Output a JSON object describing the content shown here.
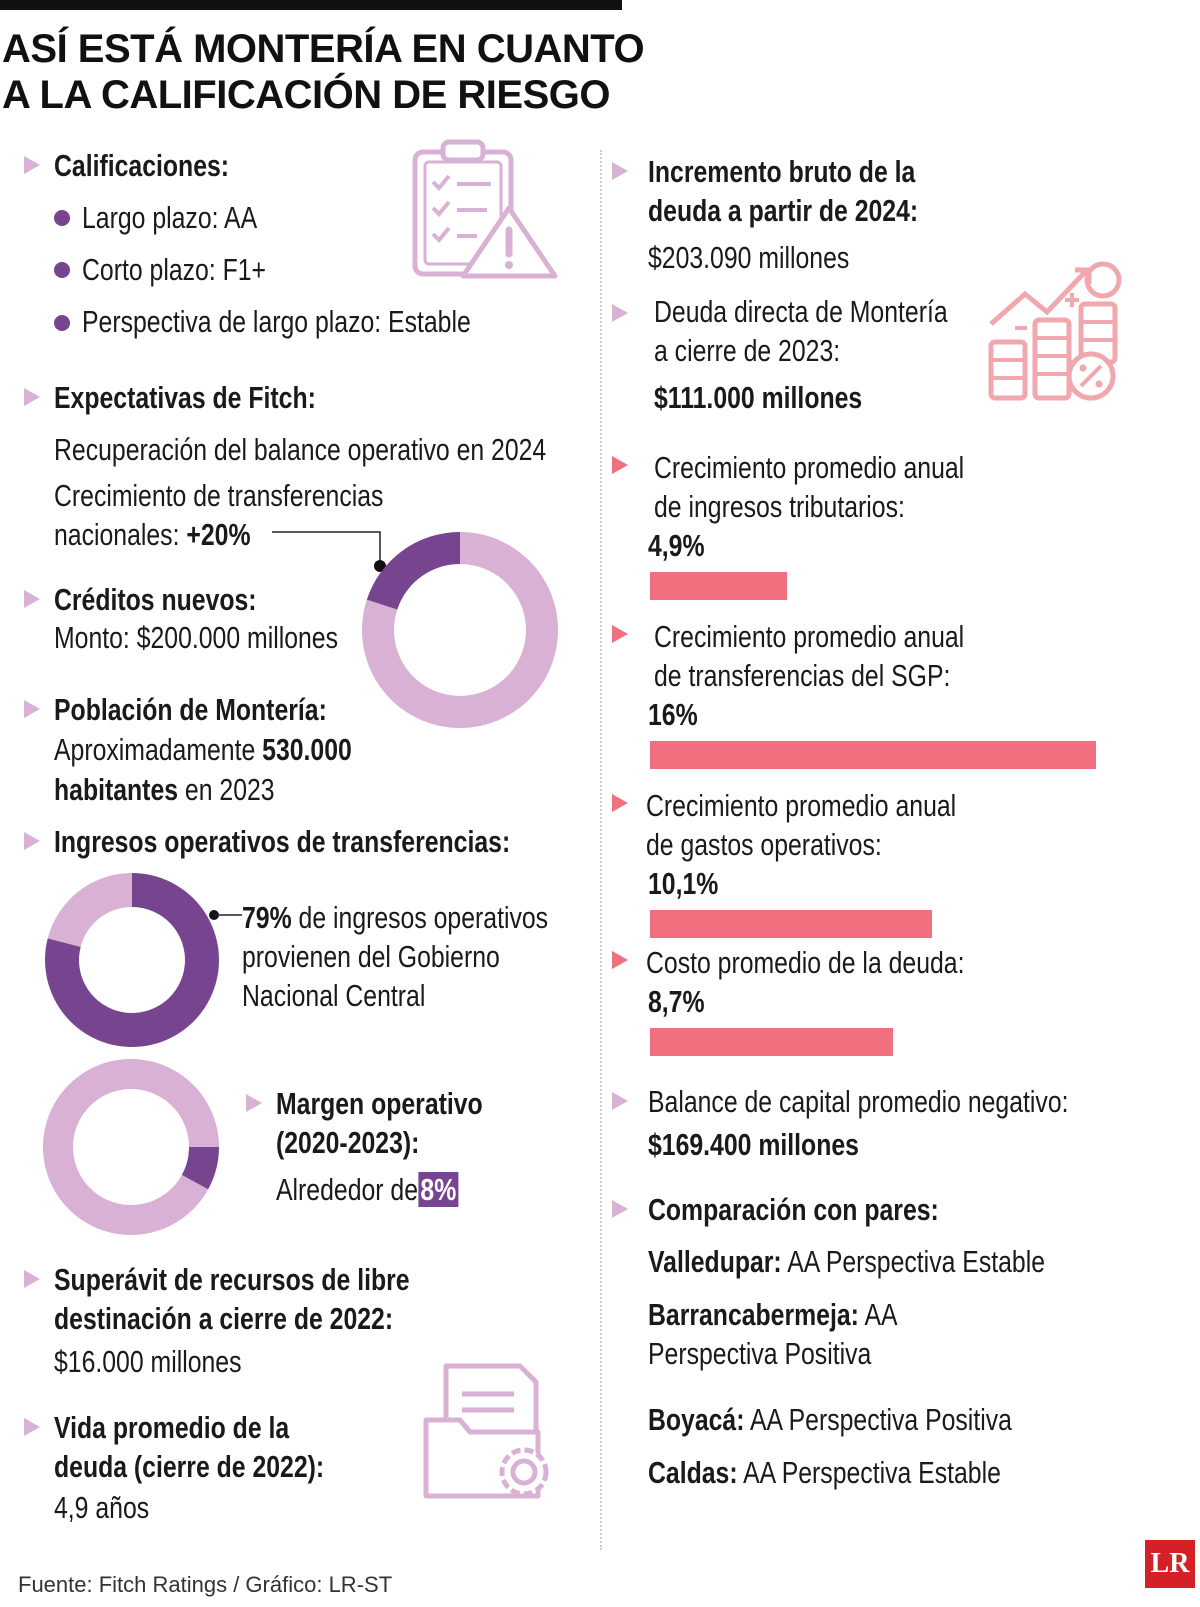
{
  "title": {
    "line1": "ASÍ ESTÁ MONTERÍA EN CUANTO",
    "line2": "A LA CALIFICACIÓN DE RIESGO"
  },
  "left": {
    "calificaciones": {
      "heading": "Calificaciones:",
      "items": [
        {
          "label": "Largo plazo:",
          "value": "AA"
        },
        {
          "label": "Corto plazo:",
          "value": "F1+"
        },
        {
          "label": "Perspectiva de largo plazo:",
          "value": "Estable"
        }
      ]
    },
    "fitch": {
      "heading": "Expectativas de Fitch:",
      "line1": "Recuperación del balance operativo en 2024",
      "line2": "Crecimiento de transferencias",
      "line3_prefix": "nacionales:",
      "line3_value": "+20%"
    },
    "creditos": {
      "heading": "Créditos nuevos:",
      "line": "Monto: $200.000 millones"
    },
    "poblacion": {
      "heading": "Población de Montería:",
      "prefix": "Aproximadamente",
      "value": "530.000",
      "value2": "habitantes",
      "suffix": "en 2023"
    },
    "ingresos": {
      "heading": "Ingresos operativos de transferencias:",
      "value": "79%",
      "line1": "de ingresos operativos",
      "line2": "provienen del Gobierno",
      "line3": "Nacional Central"
    },
    "margen": {
      "heading1": "Margen operativo",
      "heading2": "(2020-2023):",
      "prefix": "Alrededor de",
      "value": "8%"
    },
    "superavit": {
      "heading1": "Superávit de recursos de libre",
      "heading2": "destinación a cierre de 2022:",
      "value": "$16.000 millones"
    },
    "vida": {
      "heading1": "Vida promedio de la",
      "heading2": "deuda (cierre de 2022):",
      "value": "4,9 años"
    }
  },
  "right": {
    "incremento": {
      "heading1": "Incremento bruto de la",
      "heading2": "deuda a partir de 2024:",
      "value": "$203.090 millones"
    },
    "deuda": {
      "line1": "Deuda directa de Montería",
      "line2": "a cierre de 2023:",
      "value": "$111.000 millones"
    },
    "balance": {
      "line": "Balance de capital promedio negativo:",
      "value": "$169.400 millones"
    },
    "pares": {
      "heading": "Comparación con pares:",
      "items": [
        {
          "name": "Valledupar:",
          "value": "AA Perspectiva Estable"
        },
        {
          "name": "Barrancabermeja:",
          "value": "AA",
          "value2": "Perspectiva Positiva"
        },
        {
          "name": "Boyacá:",
          "value": "AA Perspectiva Positiva"
        },
        {
          "name": "Caldas:",
          "value": "AA Perspectiva Estable"
        }
      ]
    }
  },
  "chart_data": [
    {
      "type": "bar",
      "categories": [
        "Crecimiento promedio anual de ingresos tributarios:",
        "Crecimiento promedio anual de transferencias del SGP:",
        "Crecimiento promedio anual de gastos operativos:",
        "Costo promedio de la deuda:"
      ],
      "lines": [
        [
          "Crecimiento promedio anual",
          "de ingresos tributarios:"
        ],
        [
          "Crecimiento promedio anual",
          "de transferencias del SGP:"
        ],
        [
          "Crecimiento promedio anual",
          "de gastos operativos:"
        ],
        [
          "Costo promedio de la deuda:"
        ]
      ],
      "values": [
        4.9,
        16,
        10.1,
        8.7
      ],
      "labels": [
        "4,9%",
        "16%",
        "10,1%",
        "8,7%"
      ],
      "color": "#f0707f"
    },
    {
      "type": "pie",
      "label": "+20%",
      "values": [
        20,
        80
      ],
      "colors": [
        "#77458f",
        "#d9b1d4"
      ]
    },
    {
      "type": "pie",
      "label": "79%",
      "values": [
        79,
        21
      ],
      "colors": [
        "#77458f",
        "#d9b1d4"
      ]
    },
    {
      "type": "pie",
      "label": "8%",
      "values": [
        8,
        92
      ],
      "colors": [
        "#77458f",
        "#d9b1d4"
      ]
    }
  ],
  "source": "Fuente: Fitch Ratings / Gráfico: LR-ST",
  "logo": "LR",
  "colors": {
    "purple": "#77458f",
    "lilac": "#d9b1d4",
    "pink": "#f0707f"
  }
}
